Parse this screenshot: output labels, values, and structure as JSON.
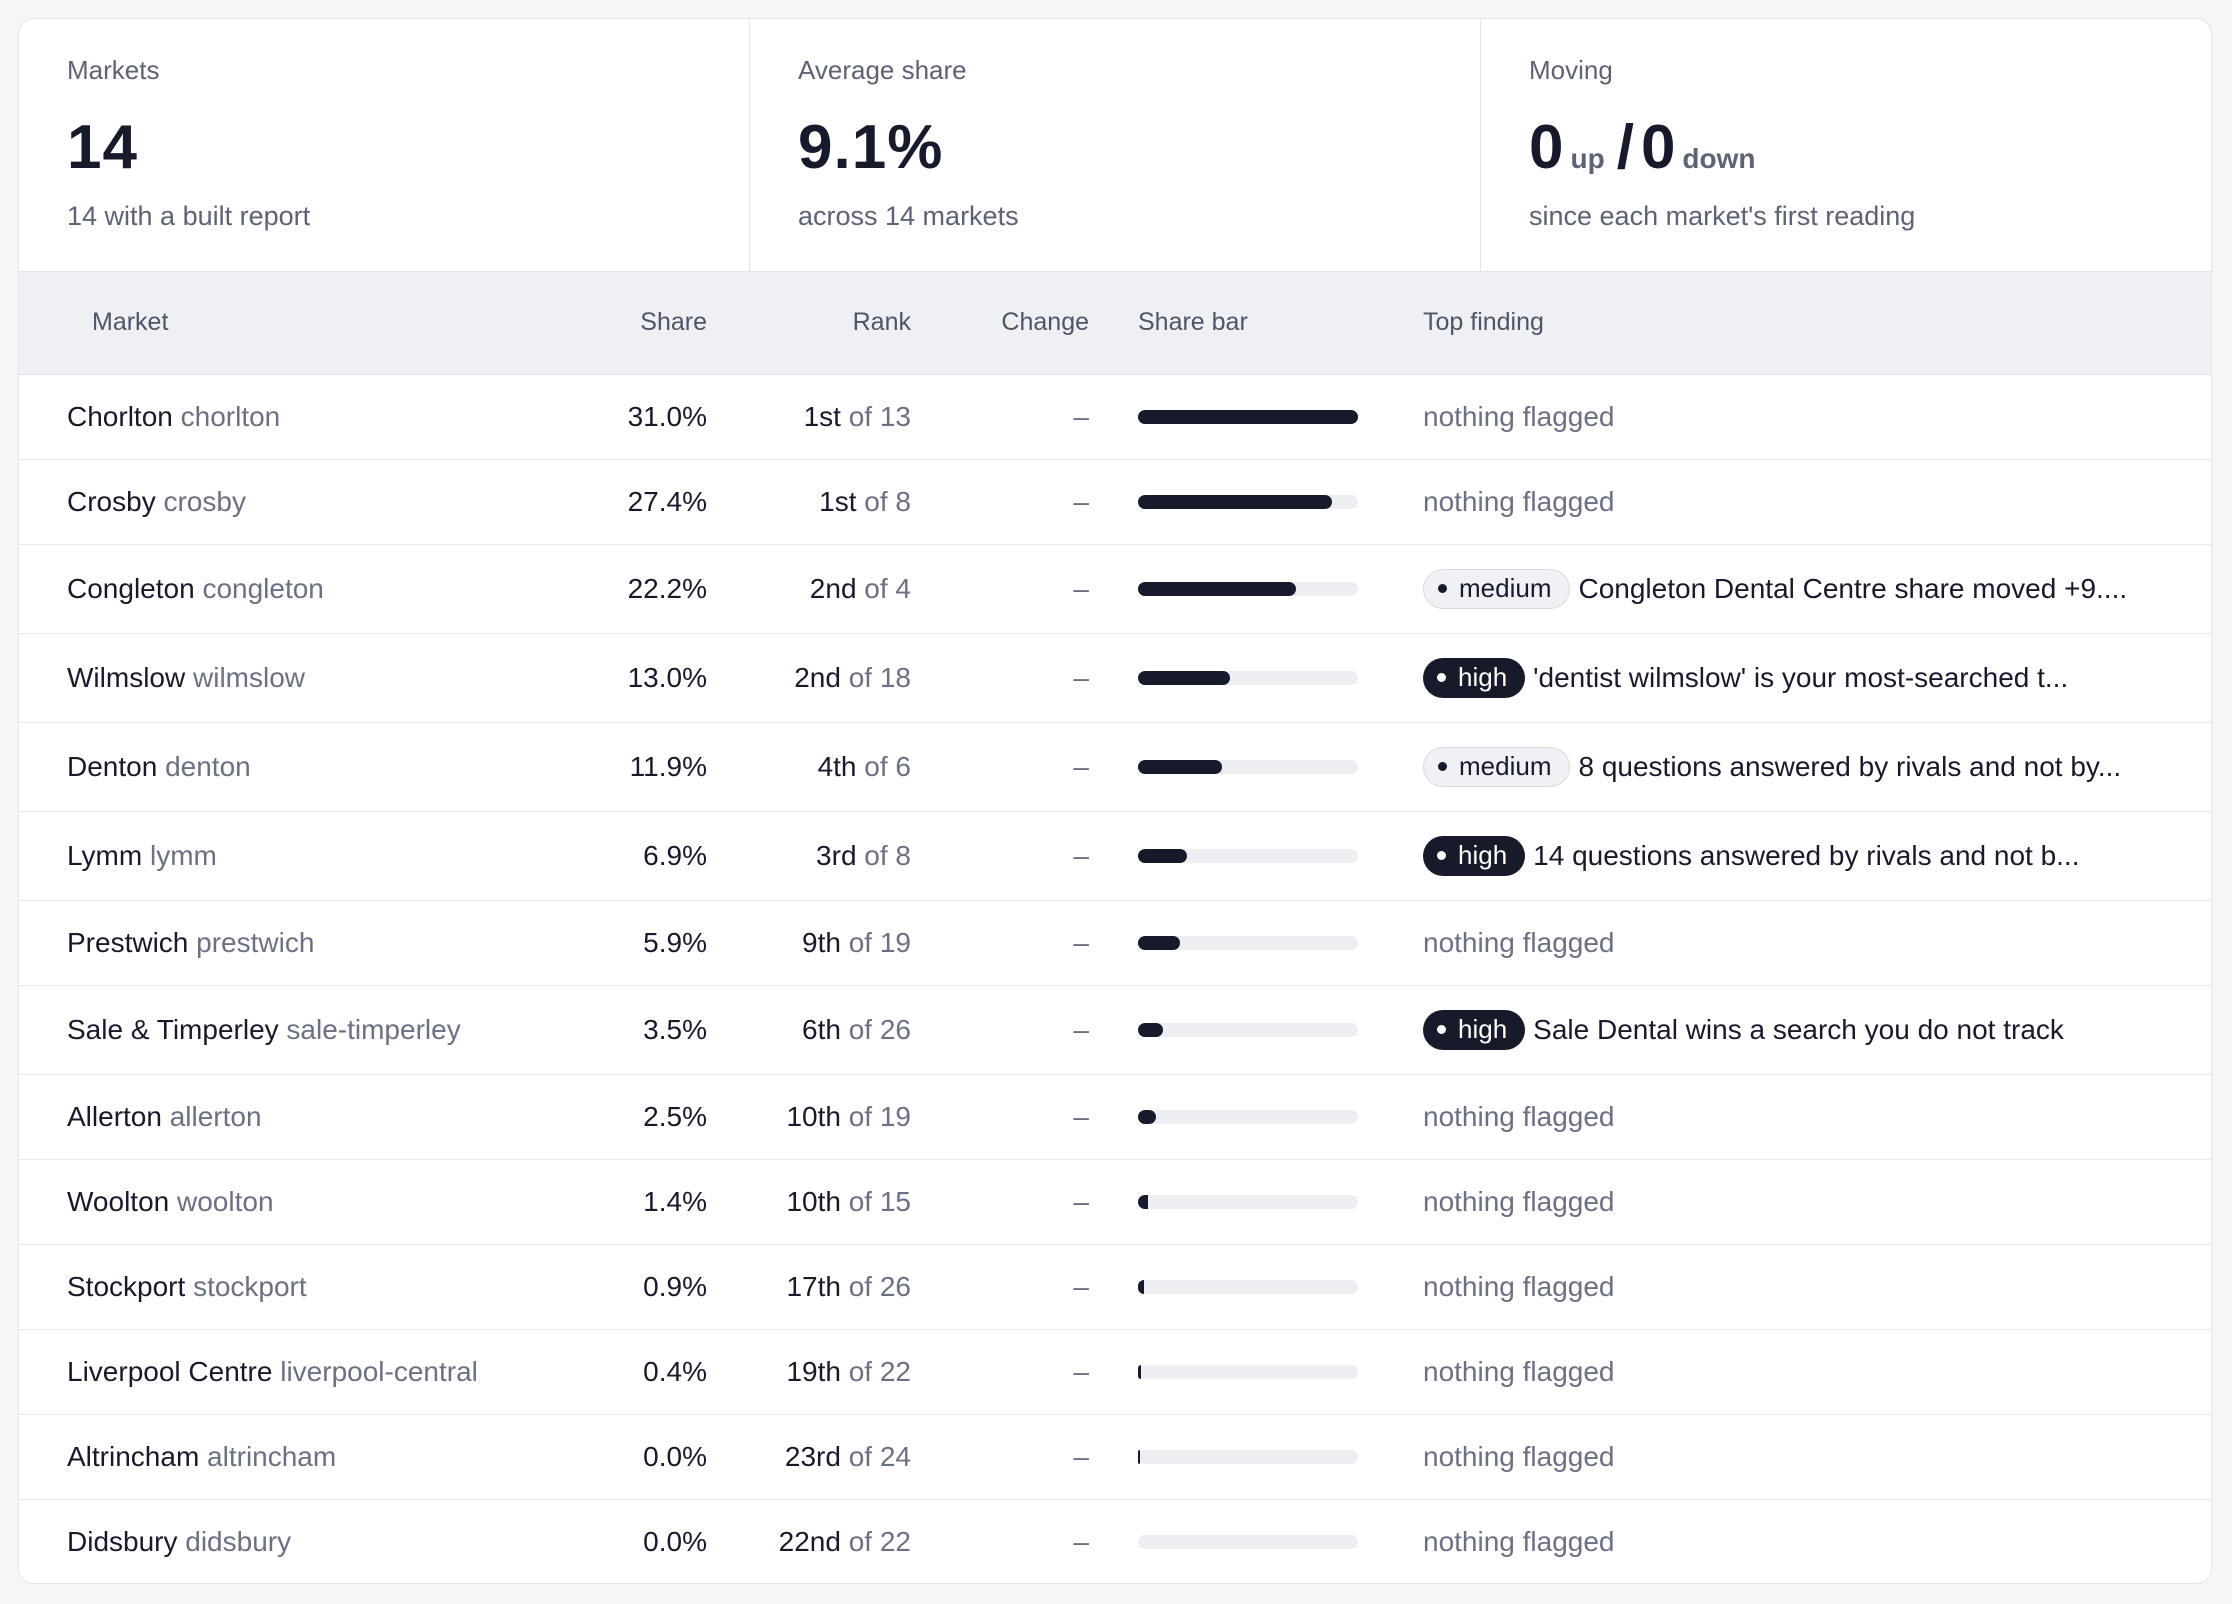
{
  "summary": {
    "markets": {
      "label": "Markets",
      "value": "14",
      "note": "14 with a built report"
    },
    "average_share": {
      "label": "Average share",
      "value": "9.1%",
      "note": "across 14 markets"
    },
    "moving": {
      "label": "Moving",
      "up_value": "0",
      "up_label": "up",
      "slash": "/",
      "down_value": "0",
      "down_label": "down",
      "note": "since each market's first reading"
    }
  },
  "table": {
    "headers": {
      "market": "Market",
      "share": "Share",
      "rank": "Rank",
      "change": "Change",
      "share_bar": "Share bar",
      "top_finding": "Top finding"
    },
    "rows": [
      {
        "name": "Chorlton",
        "slug": "chorlton",
        "share": "31.0%",
        "share_value": 31.0,
        "rank": "1st",
        "of": "of 13",
        "change": "–",
        "finding": {
          "severity": "",
          "text": "nothing flagged"
        }
      },
      {
        "name": "Crosby",
        "slug": "crosby",
        "share": "27.4%",
        "share_value": 27.4,
        "rank": "1st",
        "of": "of 8",
        "change": "–",
        "finding": {
          "severity": "",
          "text": "nothing flagged"
        }
      },
      {
        "name": "Congleton",
        "slug": "congleton",
        "share": "22.2%",
        "share_value": 22.2,
        "rank": "2nd",
        "of": "of 4",
        "change": "–",
        "finding": {
          "severity": "medium",
          "text": "Congleton Dental Centre share moved +9...."
        }
      },
      {
        "name": "Wilmslow",
        "slug": "wilmslow",
        "share": "13.0%",
        "share_value": 13.0,
        "rank": "2nd",
        "of": "of 18",
        "change": "–",
        "finding": {
          "severity": "high",
          "text": "'dentist wilmslow' is your most-searched t..."
        }
      },
      {
        "name": "Denton",
        "slug": "denton",
        "share": "11.9%",
        "share_value": 11.9,
        "rank": "4th",
        "of": "of 6",
        "change": "–",
        "finding": {
          "severity": "medium",
          "text": "8 questions answered by rivals and not by..."
        }
      },
      {
        "name": "Lymm",
        "slug": "lymm",
        "share": "6.9%",
        "share_value": 6.9,
        "rank": "3rd",
        "of": "of 8",
        "change": "–",
        "finding": {
          "severity": "high",
          "text": "14 questions answered by rivals and not b..."
        }
      },
      {
        "name": "Prestwich",
        "slug": "prestwich",
        "share": "5.9%",
        "share_value": 5.9,
        "rank": "9th",
        "of": "of 19",
        "change": "–",
        "finding": {
          "severity": "",
          "text": "nothing flagged"
        }
      },
      {
        "name": "Sale & Timperley",
        "slug": "sale-timperley",
        "share": "3.5%",
        "share_value": 3.5,
        "rank": "6th",
        "of": "of 26",
        "change": "–",
        "finding": {
          "severity": "high",
          "text": "Sale Dental wins a search you do not track"
        }
      },
      {
        "name": "Allerton",
        "slug": "allerton",
        "share": "2.5%",
        "share_value": 2.5,
        "rank": "10th",
        "of": "of 19",
        "change": "–",
        "finding": {
          "severity": "",
          "text": "nothing flagged"
        }
      },
      {
        "name": "Woolton",
        "slug": "woolton",
        "share": "1.4%",
        "share_value": 1.4,
        "rank": "10th",
        "of": "of 15",
        "change": "–",
        "finding": {
          "severity": "",
          "text": "nothing flagged"
        }
      },
      {
        "name": "Stockport",
        "slug": "stockport",
        "share": "0.9%",
        "share_value": 0.9,
        "rank": "17th",
        "of": "of 26",
        "change": "–",
        "finding": {
          "severity": "",
          "text": "nothing flagged"
        }
      },
      {
        "name": "Liverpool Centre",
        "slug": "liverpool-central",
        "share": "0.4%",
        "share_value": 0.4,
        "rank": "19th",
        "of": "of 22",
        "change": "–",
        "finding": {
          "severity": "",
          "text": "nothing flagged"
        }
      },
      {
        "name": "Altrincham",
        "slug": "altrincham",
        "share": "0.0%",
        "share_value": 0.0,
        "rank": "23rd",
        "of": "of 24",
        "change": "–",
        "finding": {
          "severity": "",
          "text": "nothing flagged"
        }
      },
      {
        "name": "Didsbury",
        "slug": "didsbury",
        "share": "0.0%",
        "share_value": 0.0,
        "rank": "22nd",
        "of": "of 22",
        "change": "–",
        "finding": {
          "severity": "",
          "text": "nothing flagged"
        }
      }
    ]
  },
  "colors": {
    "ink": "#171a2b",
    "muted": "#6b7083",
    "track": "#eceef2",
    "header_bg": "#eef0f4"
  }
}
